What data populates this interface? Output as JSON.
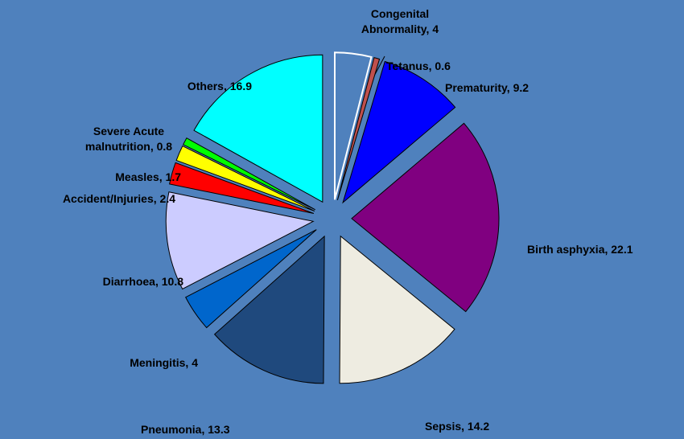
{
  "chart_data": {
    "type": "pie",
    "categories": [
      "Congenital Abnormality",
      "Tetanus",
      "Prematurity",
      "Birth asphyxia",
      "Sepsis",
      "Pneumonia",
      "Meningitis",
      "Diarrhoea",
      "Accident/Injuries",
      "Measles",
      "Severe Acute malnutrition",
      "Others"
    ],
    "values": [
      4,
      0.6,
      9.2,
      22.1,
      14.2,
      13.3,
      4,
      10.8,
      2.4,
      1.7,
      0.8,
      16.9
    ],
    "colors": [
      "#4f81bd",
      "#c0504d",
      "#0000ff",
      "#800080",
      "#eeece1",
      "#1f497d",
      "#0066cc",
      "#ccccff",
      "#ff0000",
      "#ffff00",
      "#00ff00",
      "#00ffff"
    ]
  }
}
